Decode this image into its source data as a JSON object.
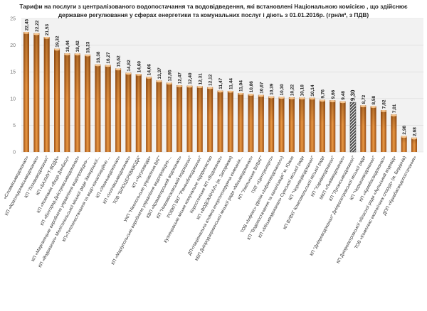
{
  "chart_data": {
    "type": "bar",
    "title_line1": "Тарифи на послуги з централізованого водопостачання та водовідведення, які встановлені Національною комісією , що здійснює",
    "title_line2": "державне регулювання у сферах енергетики та комунальних послуг і діють з 01.01.2016р. (грн/м³, з ПДВ)",
    "ylim": [
      0,
      25
    ],
    "yticks": [
      "0",
      "5",
      "10",
      "15",
      "20",
      "25"
    ],
    "grid": true,
    "bar_color": "#c8701e",
    "highlight_color": "#555555",
    "highlight_index": 32,
    "categories": [
      "«Словміськводоканал»",
      "КП «Краснодонміськводоканал»",
      "КП \"Лозоваводоканал\"",
      "КП «БАХМУТ-ВОДА»",
      "КП «Компанія «Вода Донбасу»",
      "КП «Білгород-Дністровськводоканал»",
      "КП «Марганецьке виробниче управління водопровідно-...",
      "КП «Водоканал» Мелітопольської міської ради Запорізької...",
      "КП«Теплопостачання та водо-каналізаційне ...",
      "КП «Уманьводоканал»",
      "КП «Іллічівськводоканал»",
      "ТОВ \"БІЛОЦЕРКВАВОДА\"",
      "КП «Чугуєввода»",
      "УКП \"Нікопольське управління ВКГ\"",
      "КП «Маріупольське виробниче управління водопровідно-...",
      "КВП «Краматорський водоканал»",
      "КП \"Новомосковський водоканал\"",
      "РОВКП ВКГ \"Рівнеоблводоканал\"",
      "Кузнецовське міське комунальне підприємство",
      "Коростенське КП «Водоканал»",
      "КП «ВОДОКАНАЛ» (м. Запоріжжя)",
      "ДП«Національна атомна енергогенеруюча компанія...",
      "КВП Дніпродзержинської міської ради «Міськводоканал»",
      "КП \"Хмільнське ВУВКГ\"",
      "ПАТ «Центренерго»",
      "ТОВ «Інфокс» (філія «Інфоксводоканал»)",
      "КП \"Водопостачання та каналізація\" м. Южне",
      "КП «Міськводоканал» Сумської міської ради",
      "КП \"Чернівціводоканал\"",
      "КП ВУВКГ Комсомольської міської ради",
      "КП \"Харківводоканал\"",
      "МКП «Львівводоканал»",
      "КП \"Луганськводоканал\"",
      "КП \"Дніпроводоканал\" Дніпропетровської міської ради",
      "КП \"Черкасиводоканал\"",
      "КП «Кривбасводоканал»",
      "КП Дніпропетровської обласної ради «Аульський водовід»",
      "ТОВ «Комплекс екологічних споруд» (м. Бердичів)",
      "ДПП «Кривбасводопостачання»"
    ],
    "values": [
      22.45,
      22.22,
      21.53,
      19.32,
      18.44,
      18.42,
      18.23,
      16.38,
      16.27,
      15.62,
      14.82,
      14.6,
      14.06,
      13.37,
      12.95,
      12.47,
      12.4,
      12.31,
      12.12,
      11.47,
      11.44,
      11.04,
      10.86,
      10.67,
      10.39,
      10.3,
      10.22,
      10.18,
      10.14,
      9.76,
      9.66,
      9.48,
      9.3,
      8.72,
      8.58,
      7.82,
      7.01,
      2.98,
      2.68
    ],
    "value_labels": [
      "22,45",
      "22,22",
      "21,53",
      "19,32",
      "18,44",
      "18,42",
      "18,23",
      "16,38",
      "16,27",
      "15,62",
      "14,82",
      "14,60",
      "14,06",
      "13,37",
      "12,95",
      "12,47",
      "12,40",
      "12,31",
      "12,12",
      "11,47",
      "11,44",
      "11,04",
      "10,86",
      "10,67",
      "10,39",
      "10,30",
      "10,22",
      "10,18",
      "10,14",
      "9,76",
      "9,66",
      "9,48",
      "9,30",
      "8,72",
      "8,58",
      "7,82",
      "7,01",
      "2,98",
      "2,68"
    ]
  }
}
